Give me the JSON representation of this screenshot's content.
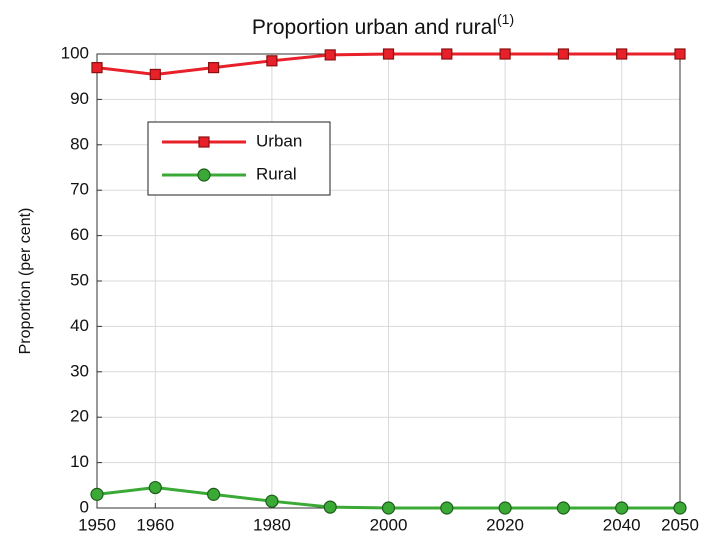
{
  "chart_data": {
    "type": "line",
    "title": "Proportion urban and rural",
    "title_superscript": "(1)",
    "y_label": "Proportion (per cent)",
    "x": [
      1950,
      1960,
      1970,
      1980,
      1990,
      2000,
      2010,
      2020,
      2030,
      2040,
      2050
    ],
    "series": [
      {
        "name": "Urban",
        "color": "#e8202a",
        "marker": "square",
        "values": [
          97,
          95.5,
          97,
          98.5,
          99.8,
          100,
          100,
          100,
          100,
          100,
          100
        ]
      },
      {
        "name": "Rural",
        "color": "#3aa935",
        "marker": "circle",
        "values": [
          3,
          4.5,
          3,
          1.5,
          0.2,
          0,
          0,
          0,
          0,
          0,
          0
        ]
      }
    ],
    "xlim": [
      1950,
      2050
    ],
    "ylim": [
      0,
      100
    ],
    "xticks": [
      1950,
      1960,
      1980,
      2000,
      2020,
      2040,
      2050
    ],
    "yticks": [
      0,
      10,
      20,
      30,
      40,
      50,
      60,
      70,
      80,
      90,
      100
    ],
    "grid": true,
    "legend": "upper left"
  }
}
